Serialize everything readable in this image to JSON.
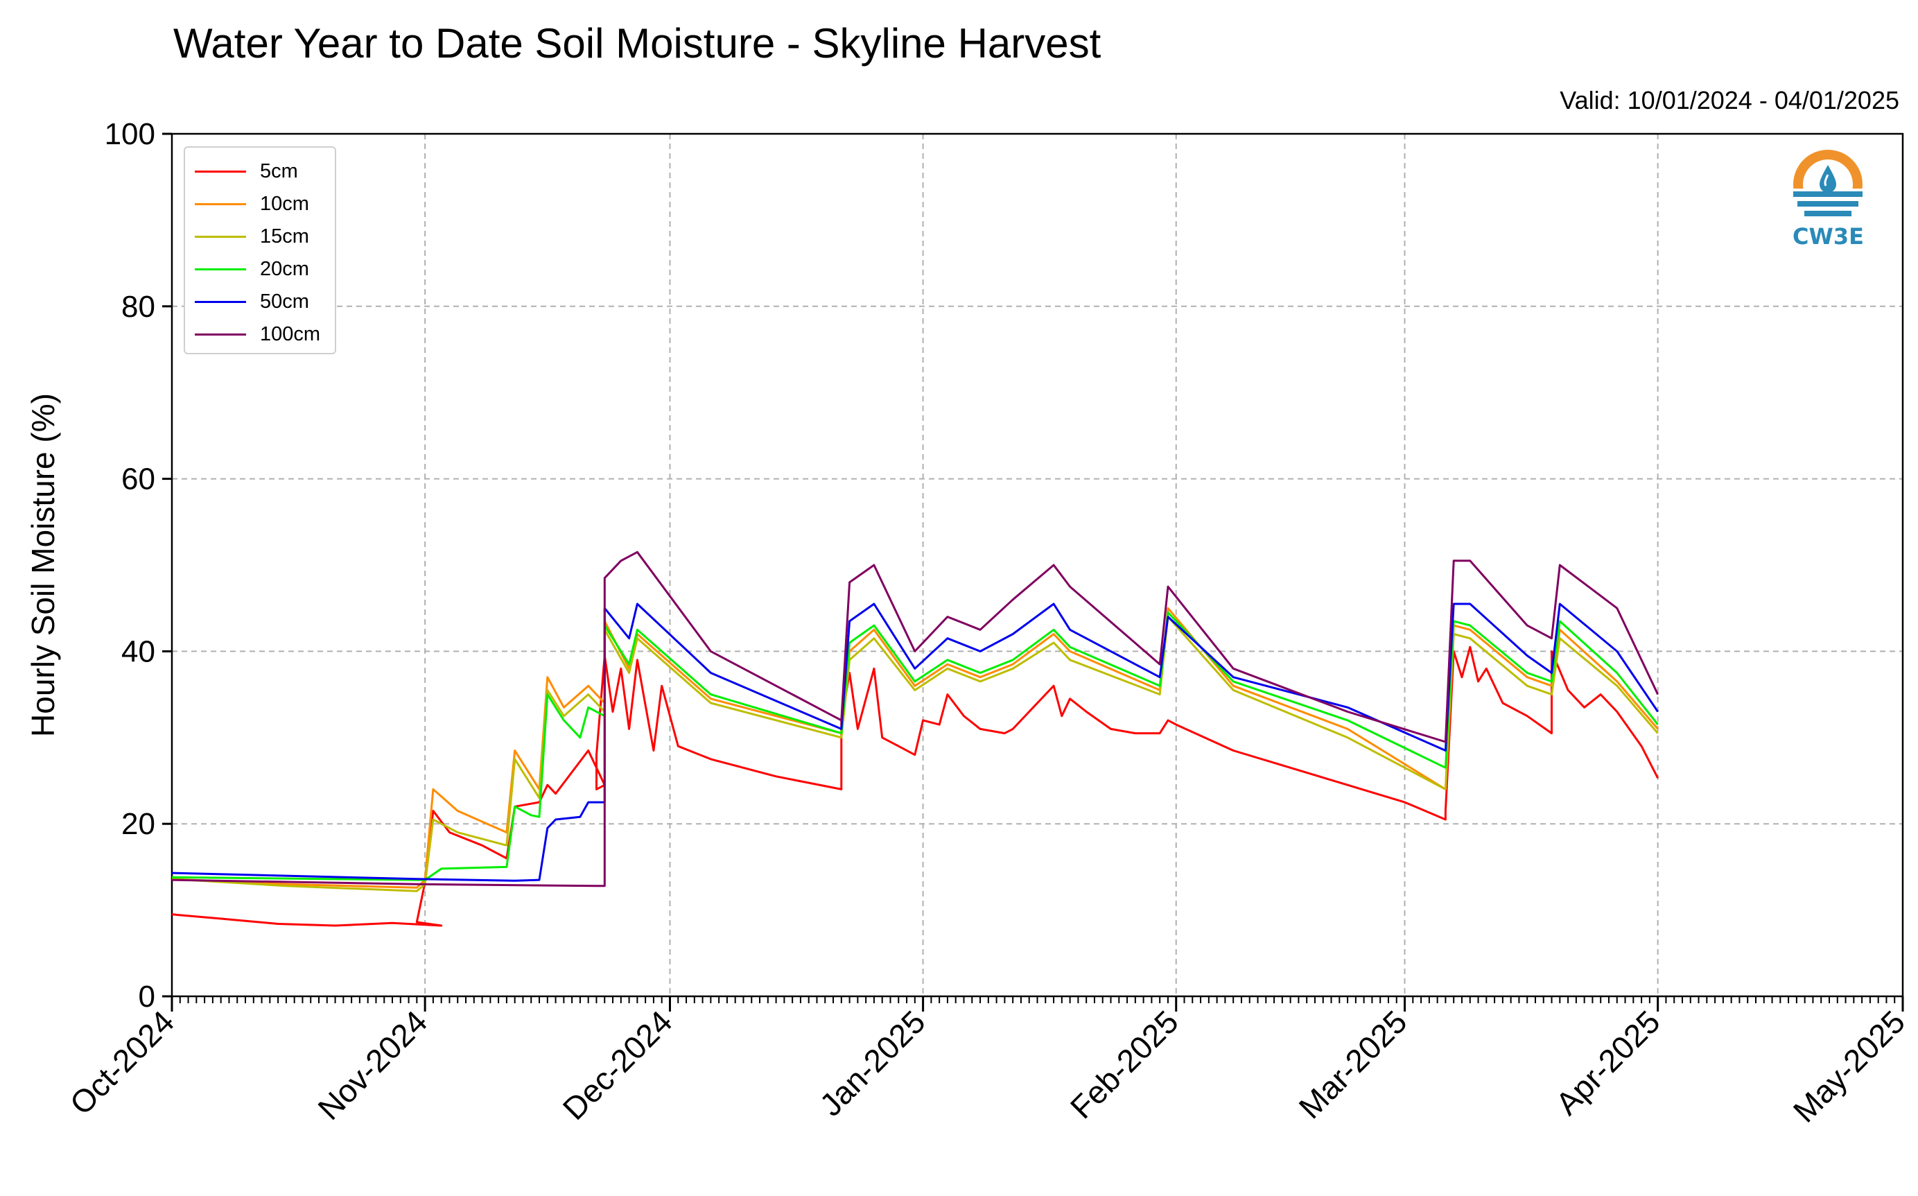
{
  "title": "Water Year to Date Soil Moisture - Skyline Harvest",
  "valid_label": "Valid: 10/01/2024 - 04/01/2025",
  "logo": {
    "text": "CW3E",
    "icon": "water-drop-sun-logo",
    "color_orange": "#f0922b",
    "color_blue": "#2a8ab8"
  },
  "chart_data": {
    "type": "line",
    "title": "Water Year to Date Soil Moisture - Skyline Harvest",
    "xlabel": "",
    "ylabel": "Hourly Soil Moisture (%)",
    "ylim": [
      0,
      100
    ],
    "yticks": [
      0,
      20,
      40,
      60,
      80,
      100
    ],
    "xlim": [
      "2024-10-01",
      "2025-05-01"
    ],
    "xticks": [
      {
        "date": "2024-10-01",
        "label": "Oct-2024"
      },
      {
        "date": "2024-11-01",
        "label": "Nov-2024"
      },
      {
        "date": "2024-12-01",
        "label": "Dec-2024"
      },
      {
        "date": "2025-01-01",
        "label": "Jan-2025"
      },
      {
        "date": "2025-02-01",
        "label": "Feb-2025"
      },
      {
        "date": "2025-03-01",
        "label": "Mar-2025"
      },
      {
        "date": "2025-04-01",
        "label": "Apr-2025"
      },
      {
        "date": "2025-05-01",
        "label": "May-2025"
      }
    ],
    "grid": true,
    "legend_position": "top-left",
    "series": [
      {
        "name": "5cm",
        "color": "#ff0000",
        "points": [
          [
            "2024-10-01",
            9.5
          ],
          [
            "2024-10-07",
            9.0
          ],
          [
            "2024-10-14",
            8.4
          ],
          [
            "2024-10-21",
            8.2
          ],
          [
            "2024-10-28",
            8.5
          ],
          [
            "2024-11-03",
            8.2
          ],
          [
            "2024-10-31",
            8.6
          ],
          [
            "2024-11-01",
            13.2
          ],
          [
            "2024-11-02",
            21.5
          ],
          [
            "2024-11-04",
            19.0
          ],
          [
            "2024-11-08",
            17.5
          ],
          [
            "2024-11-11",
            16.0
          ],
          [
            "2024-11-12",
            22.0
          ],
          [
            "2024-11-15",
            22.5
          ],
          [
            "2024-11-16",
            24.5
          ],
          [
            "2024-11-17",
            23.5
          ],
          [
            "2024-11-21",
            28.5
          ],
          [
            "2024-11-23",
            24.5
          ],
          [
            "2024-11-22",
            24.0
          ],
          [
            "2024-11-22",
            28.0
          ],
          [
            "2024-11-23",
            39.5
          ],
          [
            "2024-11-24",
            33.0
          ],
          [
            "2024-11-25",
            38.0
          ],
          [
            "2024-11-26",
            31.0
          ],
          [
            "2024-11-27",
            39.0
          ],
          [
            "2024-11-29",
            28.5
          ],
          [
            "2024-11-30",
            36.0
          ],
          [
            "2024-12-02",
            29.0
          ],
          [
            "2024-12-06",
            27.5
          ],
          [
            "2024-12-14",
            25.5
          ],
          [
            "2024-12-22",
            24.0
          ],
          [
            "2024-12-22",
            32.0
          ],
          [
            "2024-12-23",
            37.5
          ],
          [
            "2024-12-24",
            31.0
          ],
          [
            "2024-12-26",
            38.0
          ],
          [
            "2024-12-27",
            30.0
          ],
          [
            "2024-12-29",
            29.0
          ],
          [
            "2024-12-31",
            28.0
          ],
          [
            "2025-01-01",
            32.0
          ],
          [
            "2025-01-03",
            31.5
          ],
          [
            "2025-01-04",
            35.0
          ],
          [
            "2025-01-06",
            32.5
          ],
          [
            "2025-01-08",
            31.0
          ],
          [
            "2025-01-11",
            30.5
          ],
          [
            "2025-01-12",
            31.0
          ],
          [
            "2025-01-15",
            34.0
          ],
          [
            "2025-01-17",
            36.0
          ],
          [
            "2025-01-18",
            32.5
          ],
          [
            "2025-01-19",
            34.5
          ],
          [
            "2025-01-21",
            33.0
          ],
          [
            "2025-01-24",
            31.0
          ],
          [
            "2025-01-27",
            30.5
          ],
          [
            "2025-01-30",
            30.5
          ],
          [
            "2025-01-31",
            32.0
          ],
          [
            "2025-02-01",
            31.5
          ],
          [
            "2025-02-08",
            28.5
          ],
          [
            "2025-02-15",
            26.5
          ],
          [
            "2025-02-22",
            24.5
          ],
          [
            "2025-03-01",
            22.5
          ],
          [
            "2025-03-06",
            20.5
          ],
          [
            "2025-03-06",
            21.5
          ],
          [
            "2025-03-07",
            40.0
          ],
          [
            "2025-03-08",
            37.0
          ],
          [
            "2025-03-09",
            40.5
          ],
          [
            "2025-03-10",
            36.5
          ],
          [
            "2025-03-11",
            38.0
          ],
          [
            "2025-03-13",
            34.0
          ],
          [
            "2025-03-16",
            32.5
          ],
          [
            "2025-03-19",
            30.5
          ],
          [
            "2025-03-19",
            40.0
          ],
          [
            "2025-03-21",
            35.5
          ],
          [
            "2025-03-23",
            33.5
          ],
          [
            "2025-03-25",
            35.0
          ],
          [
            "2025-03-27",
            33.0
          ],
          [
            "2025-03-30",
            29.0
          ],
          [
            "2025-04-01",
            25.3
          ]
        ]
      },
      {
        "name": "10cm",
        "color": "#ff8c00",
        "points": [
          [
            "2024-10-01",
            13.6
          ],
          [
            "2024-10-15",
            13.0
          ],
          [
            "2024-10-31",
            12.6
          ],
          [
            "2024-11-01",
            13.5
          ],
          [
            "2024-11-02",
            24.0
          ],
          [
            "2024-11-05",
            21.5
          ],
          [
            "2024-11-11",
            19.0
          ],
          [
            "2024-11-12",
            28.5
          ],
          [
            "2024-11-15",
            24.0
          ],
          [
            "2024-11-16",
            37.0
          ],
          [
            "2024-11-18",
            33.5
          ],
          [
            "2024-11-21",
            36.0
          ],
          [
            "2024-11-23",
            34.0
          ],
          [
            "2024-11-23",
            43.5
          ],
          [
            "2024-11-26",
            38.0
          ],
          [
            "2024-11-27",
            42.0
          ],
          [
            "2024-12-06",
            34.5
          ],
          [
            "2024-12-22",
            30.5
          ],
          [
            "2024-12-23",
            40.0
          ],
          [
            "2024-12-26",
            42.5
          ],
          [
            "2024-12-31",
            36.0
          ],
          [
            "2025-01-04",
            38.5
          ],
          [
            "2025-01-08",
            37.0
          ],
          [
            "2025-01-12",
            38.5
          ],
          [
            "2025-01-17",
            42.0
          ],
          [
            "2025-01-19",
            40.0
          ],
          [
            "2025-01-30",
            35.5
          ],
          [
            "2025-01-31",
            45.0
          ],
          [
            "2025-02-08",
            36.0
          ],
          [
            "2025-02-22",
            31.0
          ],
          [
            "2025-03-06",
            24.0
          ],
          [
            "2025-03-07",
            43.0
          ],
          [
            "2025-03-09",
            42.5
          ],
          [
            "2025-03-16",
            37.0
          ],
          [
            "2025-03-19",
            36.0
          ],
          [
            "2025-03-20",
            42.5
          ],
          [
            "2025-03-27",
            36.5
          ],
          [
            "2025-04-01",
            31.0
          ]
        ]
      },
      {
        "name": "15cm",
        "color": "#bdbd00",
        "points": [
          [
            "2024-10-01",
            13.6
          ],
          [
            "2024-10-15",
            12.8
          ],
          [
            "2024-10-31",
            12.2
          ],
          [
            "2024-11-01",
            13.0
          ],
          [
            "2024-11-02",
            20.5
          ],
          [
            "2024-11-05",
            19.0
          ],
          [
            "2024-11-11",
            17.5
          ],
          [
            "2024-11-12",
            27.5
          ],
          [
            "2024-11-15",
            23.0
          ],
          [
            "2024-11-16",
            35.5
          ],
          [
            "2024-11-18",
            32.5
          ],
          [
            "2024-11-21",
            35.0
          ],
          [
            "2024-11-23",
            33.0
          ],
          [
            "2024-11-23",
            42.5
          ],
          [
            "2024-11-26",
            37.5
          ],
          [
            "2024-11-27",
            41.5
          ],
          [
            "2024-12-06",
            34.0
          ],
          [
            "2024-12-22",
            30.0
          ],
          [
            "2024-12-23",
            39.0
          ],
          [
            "2024-12-26",
            41.5
          ],
          [
            "2024-12-31",
            35.5
          ],
          [
            "2025-01-04",
            38.0
          ],
          [
            "2025-01-08",
            36.5
          ],
          [
            "2025-01-12",
            38.0
          ],
          [
            "2025-01-17",
            41.0
          ],
          [
            "2025-01-19",
            39.0
          ],
          [
            "2025-01-30",
            35.0
          ],
          [
            "2025-01-31",
            44.0
          ],
          [
            "2025-02-08",
            35.5
          ],
          [
            "2025-02-22",
            30.0
          ],
          [
            "2025-03-06",
            24.0
          ],
          [
            "2025-03-07",
            42.0
          ],
          [
            "2025-03-09",
            41.5
          ],
          [
            "2025-03-16",
            36.0
          ],
          [
            "2025-03-19",
            35.0
          ],
          [
            "2025-03-20",
            41.5
          ],
          [
            "2025-03-27",
            36.0
          ],
          [
            "2025-04-01",
            30.5
          ]
        ]
      },
      {
        "name": "20cm",
        "color": "#00ee00",
        "points": [
          [
            "2024-10-01",
            13.8
          ],
          [
            "2024-10-31",
            13.5
          ],
          [
            "2024-11-01",
            13.5
          ],
          [
            "2024-11-03",
            14.8
          ],
          [
            "2024-11-11",
            15.0
          ],
          [
            "2024-11-12",
            22.0
          ],
          [
            "2024-11-14",
            21.0
          ],
          [
            "2024-11-15",
            20.8
          ],
          [
            "2024-11-16",
            35.0
          ],
          [
            "2024-11-18",
            32.0
          ],
          [
            "2024-11-20",
            30.0
          ],
          [
            "2024-11-21",
            33.5
          ],
          [
            "2024-11-23",
            32.5
          ],
          [
            "2024-11-23",
            43.0
          ],
          [
            "2024-11-26",
            38.5
          ],
          [
            "2024-11-27",
            42.5
          ],
          [
            "2024-12-06",
            35.0
          ],
          [
            "2024-12-22",
            30.5
          ],
          [
            "2024-12-23",
            41.0
          ],
          [
            "2024-12-26",
            43.0
          ],
          [
            "2024-12-31",
            36.5
          ],
          [
            "2025-01-04",
            39.0
          ],
          [
            "2025-01-08",
            37.5
          ],
          [
            "2025-01-12",
            39.0
          ],
          [
            "2025-01-17",
            42.5
          ],
          [
            "2025-01-19",
            40.5
          ],
          [
            "2025-01-30",
            36.0
          ],
          [
            "2025-01-31",
            44.5
          ],
          [
            "2025-02-08",
            36.5
          ],
          [
            "2025-02-22",
            32.0
          ],
          [
            "2025-03-06",
            26.5
          ],
          [
            "2025-03-07",
            43.5
          ],
          [
            "2025-03-09",
            43.0
          ],
          [
            "2025-03-16",
            37.5
          ],
          [
            "2025-03-19",
            36.5
          ],
          [
            "2025-03-20",
            43.5
          ],
          [
            "2025-03-27",
            37.5
          ],
          [
            "2025-04-01",
            31.5
          ]
        ]
      },
      {
        "name": "50cm",
        "color": "#0000ee",
        "points": [
          [
            "2024-10-01",
            14.3
          ],
          [
            "2024-10-31",
            13.6
          ],
          [
            "2024-11-12",
            13.4
          ],
          [
            "2024-11-15",
            13.5
          ],
          [
            "2024-11-16",
            19.5
          ],
          [
            "2024-11-17",
            20.5
          ],
          [
            "2024-11-20",
            20.8
          ],
          [
            "2024-11-21",
            22.5
          ],
          [
            "2024-11-23",
            22.5
          ],
          [
            "2024-11-23",
            45.0
          ],
          [
            "2024-11-26",
            41.5
          ],
          [
            "2024-11-27",
            45.5
          ],
          [
            "2024-12-06",
            37.5
          ],
          [
            "2024-12-22",
            31.0
          ],
          [
            "2024-12-23",
            43.5
          ],
          [
            "2024-12-26",
            45.5
          ],
          [
            "2024-12-31",
            38.0
          ],
          [
            "2025-01-04",
            41.5
          ],
          [
            "2025-01-08",
            40.0
          ],
          [
            "2025-01-12",
            42.0
          ],
          [
            "2025-01-17",
            45.5
          ],
          [
            "2025-01-19",
            42.5
          ],
          [
            "2025-01-30",
            37.0
          ],
          [
            "2025-01-31",
            44.0
          ],
          [
            "2025-02-08",
            37.0
          ],
          [
            "2025-02-22",
            33.5
          ],
          [
            "2025-03-06",
            28.5
          ],
          [
            "2025-03-07",
            45.5
          ],
          [
            "2025-03-09",
            45.5
          ],
          [
            "2025-03-16",
            39.5
          ],
          [
            "2025-03-19",
            37.5
          ],
          [
            "2025-03-20",
            45.5
          ],
          [
            "2025-03-27",
            40.0
          ],
          [
            "2025-04-01",
            33.0
          ]
        ]
      },
      {
        "name": "100cm",
        "color": "#800060",
        "points": [
          [
            "2024-10-01",
            13.5
          ],
          [
            "2024-10-31",
            13.0
          ],
          [
            "2024-11-22",
            12.8
          ],
          [
            "2024-11-23",
            12.8
          ],
          [
            "2024-11-23",
            48.5
          ],
          [
            "2024-11-25",
            50.5
          ],
          [
            "2024-11-27",
            51.5
          ],
          [
            "2024-12-06",
            40.0
          ],
          [
            "2024-12-22",
            32.0
          ],
          [
            "2024-12-23",
            48.0
          ],
          [
            "2024-12-26",
            50.0
          ],
          [
            "2024-12-31",
            40.0
          ],
          [
            "2025-01-04",
            44.0
          ],
          [
            "2025-01-08",
            42.5
          ],
          [
            "2025-01-12",
            46.0
          ],
          [
            "2025-01-17",
            50.0
          ],
          [
            "2025-01-19",
            47.5
          ],
          [
            "2025-01-30",
            38.5
          ],
          [
            "2025-01-31",
            47.5
          ],
          [
            "2025-02-08",
            38.0
          ],
          [
            "2025-02-22",
            33.0
          ],
          [
            "2025-03-06",
            29.5
          ],
          [
            "2025-03-07",
            50.5
          ],
          [
            "2025-03-09",
            50.5
          ],
          [
            "2025-03-16",
            43.0
          ],
          [
            "2025-03-19",
            41.5
          ],
          [
            "2025-03-20",
            50.0
          ],
          [
            "2025-03-27",
            45.0
          ],
          [
            "2025-04-01",
            35.0
          ]
        ]
      }
    ]
  }
}
